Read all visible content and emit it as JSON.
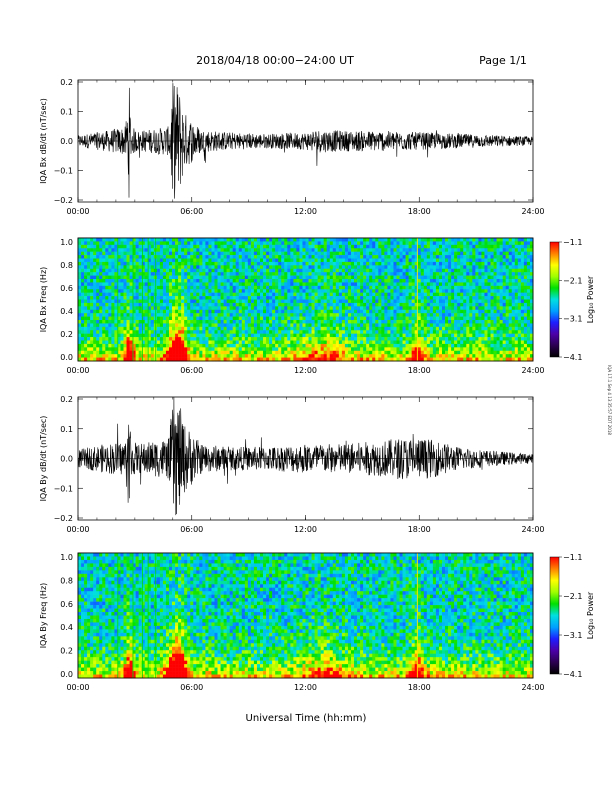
{
  "header": {
    "title": "2018/04/18  00:00−24:00 UT",
    "page": "Page 1/1"
  },
  "footer": {
    "xlabel": "Universal Time (hh:mm)"
  },
  "side_note": "IQA 17.1 Sep 4 13:35:57 EDT 2018",
  "colors": {
    "trace": "#000000",
    "colorbar": [
      "#000000",
      "#2b0050",
      "#4b00a8",
      "#1e1eff",
      "#00a0ff",
      "#00e0e0",
      "#00e000",
      "#a0ff00",
      "#ffff00",
      "#ff8000",
      "#ff0000"
    ]
  },
  "chart_data": [
    {
      "type": "line",
      "ylabel": "IQA Bx dB/dt (nT/sec)",
      "xlim": [
        0,
        24
      ],
      "ylim": [
        -0.2,
        0.2
      ],
      "xticks": [
        "00:00",
        "06:00",
        "12:00",
        "18:00",
        "24:00"
      ],
      "yticks": [
        "0.2",
        "0.1",
        "0.0",
        "−0.1",
        "−0.2"
      ],
      "envelope": {
        "x": [
          0,
          1.5,
          2.5,
          2.7,
          2.8,
          3.2,
          4.8,
          5.0,
          5.3,
          5.6,
          6.5,
          8,
          10,
          12,
          12.5,
          14,
          16,
          18,
          20,
          22,
          24
        ],
        "amp": [
          0.02,
          0.035,
          0.05,
          0.2,
          0.05,
          0.035,
          0.05,
          0.2,
          0.2,
          0.1,
          0.04,
          0.03,
          0.025,
          0.03,
          0.04,
          0.035,
          0.035,
          0.03,
          0.025,
          0.02,
          0.015
        ]
      }
    },
    {
      "type": "heatmap",
      "ylabel": "IQA Bx Freq (Hz)",
      "xlim": [
        0,
        24
      ],
      "ylim": [
        0.0,
        1.0
      ],
      "xticks": [
        "00:00",
        "06:00",
        "12:00",
        "18:00",
        "24:00"
      ],
      "yticks": [
        "1.0",
        "0.8",
        "0.6",
        "0.4",
        "0.2",
        "0.0"
      ],
      "colorbar": {
        "label": "Log₁₀ Power",
        "ticks": [
          "−1.1",
          "−2.1",
          "−3.1",
          "−4.1"
        ],
        "range": [
          -4.1,
          -1.1
        ]
      }
    },
    {
      "type": "line",
      "ylabel": "IQA By dB/dt (nT/sec)",
      "xlim": [
        0,
        24
      ],
      "ylim": [
        -0.2,
        0.2
      ],
      "xticks": [
        "00:00",
        "06:00",
        "12:00",
        "18:00",
        "24:00"
      ],
      "yticks": [
        "0.2",
        "0.1",
        "0.0",
        "−0.1",
        "−0.2"
      ],
      "envelope": {
        "x": [
          0,
          1.5,
          2.5,
          2.7,
          2.8,
          3.2,
          4.8,
          5.0,
          5.3,
          5.6,
          6.5,
          8,
          10,
          12,
          14,
          16,
          17,
          18,
          19,
          20,
          22,
          24
        ],
        "amp": [
          0.03,
          0.05,
          0.06,
          0.2,
          0.06,
          0.05,
          0.07,
          0.2,
          0.2,
          0.12,
          0.05,
          0.04,
          0.04,
          0.05,
          0.05,
          0.06,
          0.07,
          0.07,
          0.06,
          0.04,
          0.025,
          0.015
        ]
      }
    },
    {
      "type": "heatmap",
      "ylabel": "IQA By Freq (Hz)",
      "xlim": [
        0,
        24
      ],
      "ylim": [
        0.0,
        1.0
      ],
      "xticks": [
        "00:00",
        "06:00",
        "12:00",
        "18:00",
        "24:00"
      ],
      "yticks": [
        "1.0",
        "0.8",
        "0.6",
        "0.4",
        "0.2",
        "0.0"
      ],
      "colorbar": {
        "label": "Log₁₀ Power",
        "ticks": [
          "−1.1",
          "−2.1",
          "−3.1",
          "−4.1"
        ],
        "range": [
          -4.1,
          -1.1
        ]
      }
    }
  ]
}
